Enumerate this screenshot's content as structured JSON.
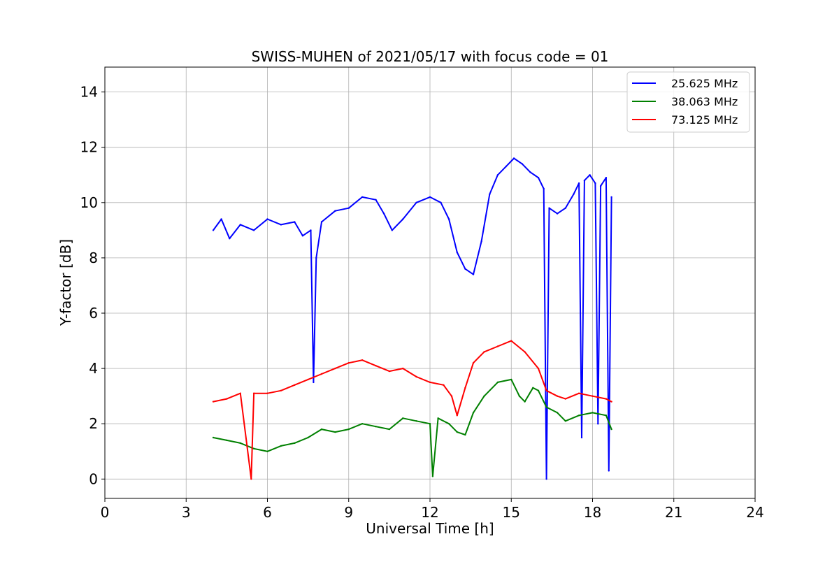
{
  "chart_data": {
    "type": "line",
    "title": "SWISS-MUHEN of 2021/05/17 with focus code = 01",
    "xlabel": "Universal Time [h]",
    "ylabel": "Y-factor [dB]",
    "xlim": [
      0,
      24
    ],
    "ylim": [
      -0.7,
      14.9
    ],
    "x_ticks": [
      0,
      3,
      6,
      9,
      12,
      15,
      18,
      21,
      24
    ],
    "y_ticks": [
      0,
      2,
      4,
      6,
      8,
      10,
      12,
      14
    ],
    "grid": true,
    "legend_position": "top-right",
    "series": [
      {
        "name": "25.625 MHz",
        "color": "#0000ff",
        "points": [
          [
            4.0,
            9.0
          ],
          [
            4.3,
            9.4
          ],
          [
            4.6,
            8.7
          ],
          [
            5.0,
            9.2
          ],
          [
            5.5,
            9.0
          ],
          [
            6.0,
            9.4
          ],
          [
            6.5,
            9.2
          ],
          [
            7.0,
            9.3
          ],
          [
            7.3,
            8.8
          ],
          [
            7.6,
            9.0
          ],
          [
            7.7,
            3.5
          ],
          [
            7.8,
            8.0
          ],
          [
            8.0,
            9.3
          ],
          [
            8.5,
            9.7
          ],
          [
            9.0,
            9.8
          ],
          [
            9.5,
            10.2
          ],
          [
            10.0,
            10.1
          ],
          [
            10.3,
            9.6
          ],
          [
            10.6,
            9.0
          ],
          [
            11.0,
            9.4
          ],
          [
            11.5,
            10.0
          ],
          [
            12.0,
            10.2
          ],
          [
            12.4,
            10.0
          ],
          [
            12.7,
            9.4
          ],
          [
            13.0,
            8.2
          ],
          [
            13.3,
            7.6
          ],
          [
            13.6,
            7.4
          ],
          [
            13.9,
            8.6
          ],
          [
            14.2,
            10.3
          ],
          [
            14.5,
            11.0
          ],
          [
            14.8,
            11.3
          ],
          [
            15.1,
            11.6
          ],
          [
            15.4,
            11.4
          ],
          [
            15.7,
            11.1
          ],
          [
            16.0,
            10.9
          ],
          [
            16.2,
            10.5
          ],
          [
            16.3,
            0.0
          ],
          [
            16.4,
            9.8
          ],
          [
            16.7,
            9.6
          ],
          [
            17.0,
            9.8
          ],
          [
            17.3,
            10.3
          ],
          [
            17.5,
            10.7
          ],
          [
            17.6,
            1.5
          ],
          [
            17.7,
            10.8
          ],
          [
            17.9,
            11.0
          ],
          [
            18.1,
            10.7
          ],
          [
            18.2,
            2.0
          ],
          [
            18.3,
            10.6
          ],
          [
            18.5,
            10.9
          ],
          [
            18.6,
            0.3
          ],
          [
            18.7,
            10.2
          ]
        ]
      },
      {
        "name": "38.063 MHz",
        "color": "#008000",
        "points": [
          [
            4.0,
            1.5
          ],
          [
            4.5,
            1.4
          ],
          [
            5.0,
            1.3
          ],
          [
            5.5,
            1.1
          ],
          [
            6.0,
            1.0
          ],
          [
            6.5,
            1.2
          ],
          [
            7.0,
            1.3
          ],
          [
            7.5,
            1.5
          ],
          [
            8.0,
            1.8
          ],
          [
            8.5,
            1.7
          ],
          [
            9.0,
            1.8
          ],
          [
            9.5,
            2.0
          ],
          [
            10.0,
            1.9
          ],
          [
            10.5,
            1.8
          ],
          [
            11.0,
            2.2
          ],
          [
            11.5,
            2.1
          ],
          [
            12.0,
            2.0
          ],
          [
            12.1,
            0.1
          ],
          [
            12.3,
            2.2
          ],
          [
            12.7,
            2.0
          ],
          [
            13.0,
            1.7
          ],
          [
            13.3,
            1.6
          ],
          [
            13.6,
            2.4
          ],
          [
            14.0,
            3.0
          ],
          [
            14.5,
            3.5
          ],
          [
            15.0,
            3.6
          ],
          [
            15.3,
            3.0
          ],
          [
            15.5,
            2.8
          ],
          [
            15.8,
            3.3
          ],
          [
            16.0,
            3.2
          ],
          [
            16.3,
            2.6
          ],
          [
            16.7,
            2.4
          ],
          [
            17.0,
            2.1
          ],
          [
            17.5,
            2.3
          ],
          [
            18.0,
            2.4
          ],
          [
            18.5,
            2.3
          ],
          [
            18.7,
            1.8
          ]
        ]
      },
      {
        "name": "73.125 MHz",
        "color": "#ff0000",
        "points": [
          [
            4.0,
            2.8
          ],
          [
            4.5,
            2.9
          ],
          [
            5.0,
            3.1
          ],
          [
            5.4,
            0.0
          ],
          [
            5.5,
            3.1
          ],
          [
            6.0,
            3.1
          ],
          [
            6.5,
            3.2
          ],
          [
            7.0,
            3.4
          ],
          [
            7.5,
            3.6
          ],
          [
            8.0,
            3.8
          ],
          [
            8.5,
            4.0
          ],
          [
            9.0,
            4.2
          ],
          [
            9.5,
            4.3
          ],
          [
            10.0,
            4.1
          ],
          [
            10.5,
            3.9
          ],
          [
            11.0,
            4.0
          ],
          [
            11.5,
            3.7
          ],
          [
            12.0,
            3.5
          ],
          [
            12.5,
            3.4
          ],
          [
            12.8,
            3.0
          ],
          [
            13.0,
            2.3
          ],
          [
            13.3,
            3.3
          ],
          [
            13.6,
            4.2
          ],
          [
            14.0,
            4.6
          ],
          [
            14.5,
            4.8
          ],
          [
            15.0,
            5.0
          ],
          [
            15.5,
            4.6
          ],
          [
            16.0,
            4.0
          ],
          [
            16.3,
            3.2
          ],
          [
            16.7,
            3.0
          ],
          [
            17.0,
            2.9
          ],
          [
            17.5,
            3.1
          ],
          [
            18.0,
            3.0
          ],
          [
            18.5,
            2.9
          ],
          [
            18.7,
            2.8
          ]
        ]
      }
    ]
  }
}
